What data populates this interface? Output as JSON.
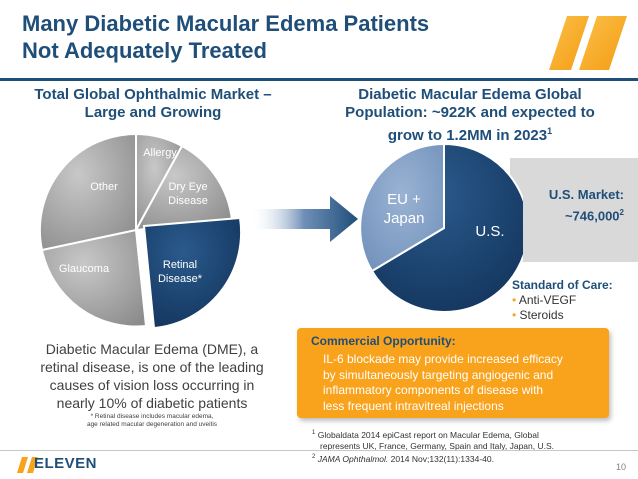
{
  "title": {
    "line1": "Many Diabetic Macular Edema Patients",
    "line2": "Not Adequately Treated"
  },
  "left": {
    "heading_line1": "Total Global Ophthalmic Market –",
    "heading_line2": "Large and Growing",
    "pie": {
      "allergy": "Allergy",
      "dry_eye_1": "Dry Eye",
      "dry_eye_2": "Disease",
      "retinal_1": "Retinal",
      "retinal_2": "Disease*",
      "glaucoma": "Glaucoma",
      "other": "Other"
    },
    "dme_line1": "Diabetic Macular Edema (DME), a",
    "dme_line2": "retinal disease, is one of the leading",
    "dme_line3": "causes of vision loss occurring in",
    "dme_line4": "nearly 10% of diabetic patients",
    "footnote_line1": "* Retinal disease includes macular edema,",
    "footnote_line2": "age related macular degeneration and uveitis"
  },
  "right": {
    "heading_line1": "Diabetic Macular Edema Global",
    "heading_line2": "Population: ~922K and expected to",
    "heading_line3": "grow to 1.2MM in 2023",
    "heading_sup": "1",
    "pie": {
      "eu_1": "EU +",
      "eu_2": "Japan",
      "us": "U.S."
    },
    "us_market_label": "U.S. Market:",
    "us_market_value": "~746,000",
    "us_market_sup": "2",
    "soc_title": "Standard of Care:",
    "soc_items": [
      "Anti-VEGF",
      "Steroids"
    ]
  },
  "opportunity": {
    "title": "Commercial Opportunity:",
    "line1": "IL-6 blockade may provide increased efficacy",
    "line2": "by simultaneously targeting angiogenic and",
    "line3": "inflammatory components of disease with",
    "line4": "less frequent intravitreal injections"
  },
  "refs": {
    "r1_sup": "1",
    "r1_line1": "Globaldata 2014 epiCast report on Macular Edema, Global",
    "r1_line2": "represents UK, France, Germany, Spain and Italy, Japan, U.S.",
    "r2_sup": "2",
    "r2_journal": "JAMA Ophthalmol.",
    "r2_rest": " 2014 Nov;132(11):1334-40."
  },
  "brand": "ELEVEN",
  "page_number": "10",
  "colors": {
    "navy": "#1f4e79",
    "orange": "#f9a21b",
    "grey": "#a6a6a6",
    "light_blue": "#7f9fc6"
  },
  "icons": {
    "logo": "stripes-logo-icon",
    "arrow": "right-arrow-icon"
  }
}
